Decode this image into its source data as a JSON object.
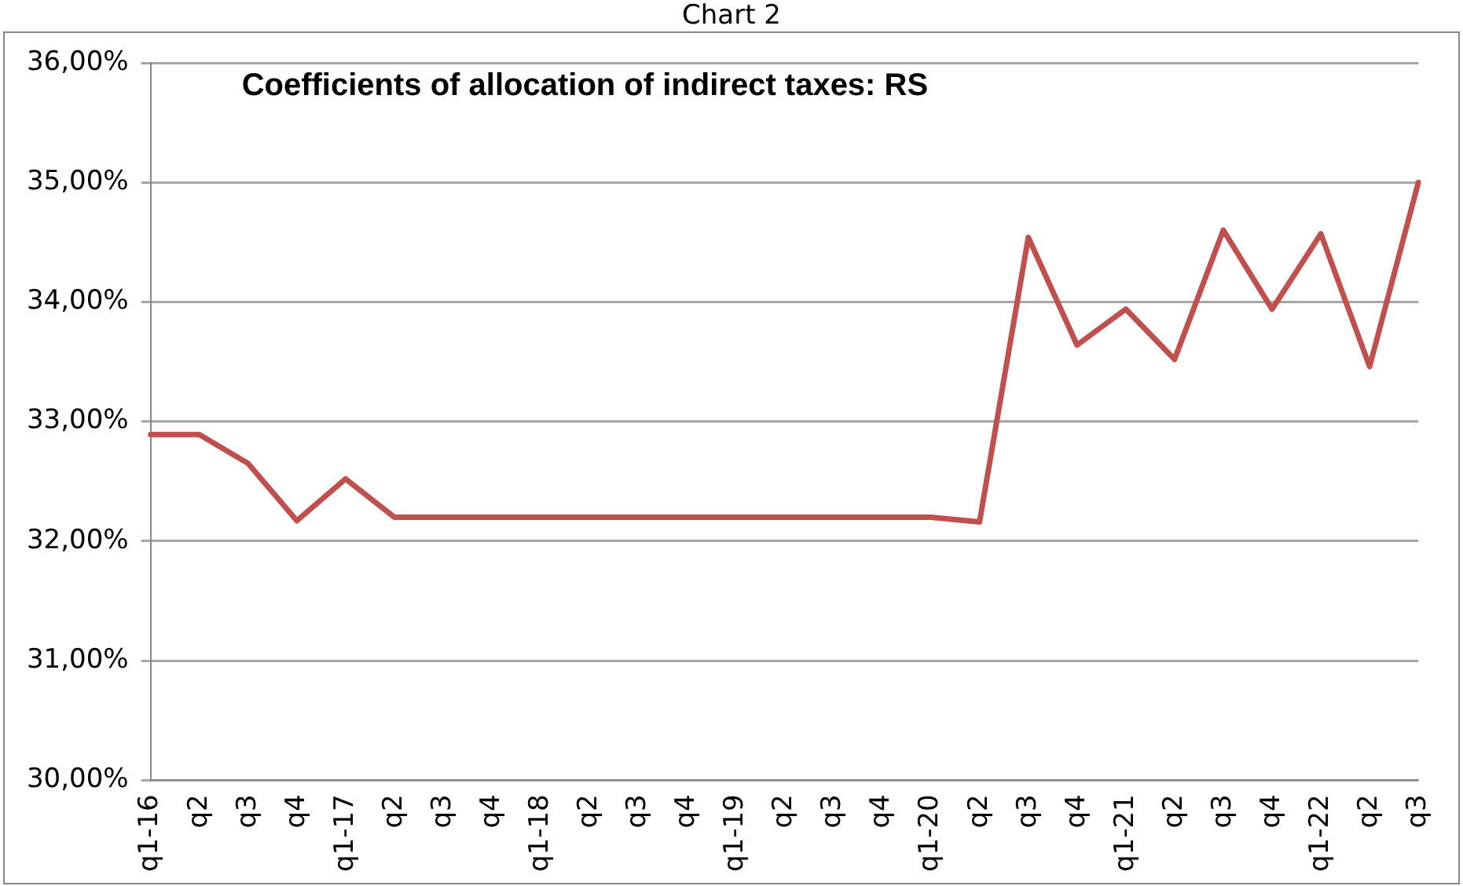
{
  "chart_data": {
    "type": "line",
    "title": "Chart 2",
    "subtitle": "Coefficients of allocation of indirect taxes: RS",
    "categories": [
      "q1-16",
      "q2",
      "q3",
      "q4",
      "q1-17",
      "q2",
      "q3",
      "q4",
      "q1-18",
      "q2",
      "q3",
      "q4",
      "q1-19",
      "q2",
      "q3",
      "q4",
      "q1-20",
      "q2",
      "q3",
      "q4",
      "q1-21",
      "q2",
      "q3",
      "q4",
      "q1-22",
      "q2",
      "q3"
    ],
    "series": [
      {
        "color": "#c0504d",
        "values": [
          32.89,
          32.89,
          32.65,
          32.17,
          32.52,
          32.2,
          32.2,
          32.2,
          32.2,
          32.2,
          32.2,
          32.2,
          32.2,
          32.2,
          32.2,
          32.2,
          32.2,
          32.16,
          34.54,
          33.64,
          33.94,
          33.52,
          34.6,
          33.94,
          34.57,
          33.46,
          35.0
        ]
      }
    ],
    "ylim": [
      30,
      36
    ],
    "yticks": [
      {
        "value": 30,
        "label": "30,00%"
      },
      {
        "value": 31,
        "label": "31,00%"
      },
      {
        "value": 32,
        "label": "32,00%"
      },
      {
        "value": 33,
        "label": "33,00%"
      },
      {
        "value": 34,
        "label": "34,00%"
      },
      {
        "value": 35,
        "label": "35,00%"
      },
      {
        "value": 36,
        "label": "36,00%"
      }
    ],
    "grid": "y",
    "legend": false,
    "marker": "none",
    "line_style": "solid"
  }
}
